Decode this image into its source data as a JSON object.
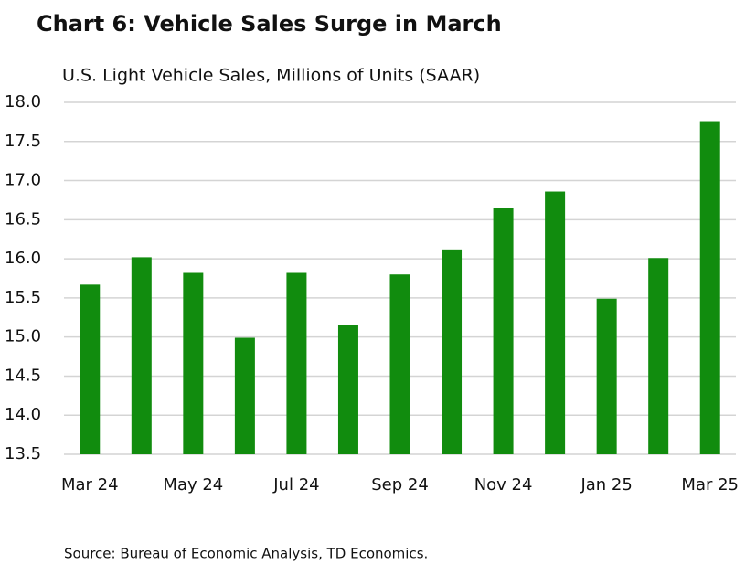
{
  "chart_data": {
    "type": "bar",
    "title": "Chart 6: Vehicle Sales Surge in March",
    "subtitle": "U.S. Light Vehicle Sales, Millions of Units (SAAR)",
    "source": "Source: Bureau of Economic Analysis, TD Economics.",
    "categories": [
      "Mar 24",
      null,
      "May 24",
      null,
      "Jul 24",
      null,
      "Sep 24",
      null,
      "Nov 24",
      null,
      "Jan 25",
      null,
      "Mar 25"
    ],
    "values": [
      15.67,
      16.02,
      15.82,
      14.99,
      15.82,
      15.15,
      15.8,
      16.12,
      16.65,
      16.86,
      15.49,
      16.01,
      17.76
    ],
    "color": "#118c0e",
    "ylim": [
      13.5,
      18.0
    ],
    "yticks": [
      13.5,
      {
        "value": 14,
        "label": "14.0"
      },
      14.5,
      {
        "value": 15,
        "label": "15.0"
      },
      15.5,
      {
        "value": 16,
        "label": "16.0"
      },
      16.5,
      {
        "value": 17,
        "label": "17.0"
      },
      17.5,
      {
        "value": 18,
        "label": "18.0"
      }
    ],
    "grid": true
  }
}
